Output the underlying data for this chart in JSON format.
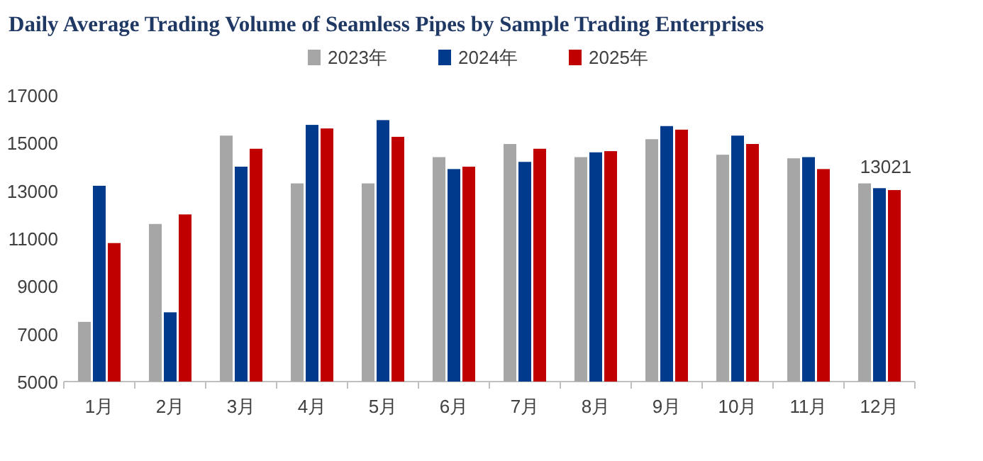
{
  "chart_data": {
    "type": "bar",
    "title": "Daily Average Trading Volume of Seamless Pipes by Sample Trading Enterprises",
    "categories": [
      "1月",
      "2月",
      "3月",
      "4月",
      "5月",
      "6月",
      "7月",
      "8月",
      "9月",
      "10月",
      "11月",
      "12月"
    ],
    "series": [
      {
        "name": "2023年",
        "color": "#a6a6a6",
        "values": [
          7500,
          11600,
          15300,
          13300,
          13300,
          14400,
          14950,
          14400,
          15150,
          14500,
          14350,
          13300
        ]
      },
      {
        "name": "2024年",
        "color": "#003a8c",
        "values": [
          13200,
          7900,
          14000,
          15750,
          15950,
          13900,
          14200,
          14600,
          15700,
          15300,
          14400,
          13100
        ]
      },
      {
        "name": "2025年",
        "color": "#c00000",
        "values": [
          10800,
          12000,
          14750,
          15600,
          15250,
          14000,
          14750,
          14650,
          15550,
          14950,
          13900,
          13021
        ],
        "value_labels": [
          null,
          null,
          null,
          null,
          null,
          null,
          null,
          null,
          null,
          null,
          null,
          "13021"
        ]
      }
    ],
    "ylim": [
      5000,
      17000
    ],
    "yticks": [
      5000,
      7000,
      9000,
      11000,
      13000,
      15000,
      17000
    ],
    "legend": "top"
  }
}
